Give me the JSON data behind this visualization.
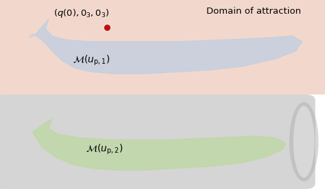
{
  "fig_width": 4.74,
  "fig_height": 2.76,
  "dpi": 100,
  "top_bg_color": "#f2d8cc",
  "bottom_bg_color": "#d5d5d5",
  "cylinder_light": "#e8e8e8",
  "cylinder_edge": "#b0b0b0",
  "blue_shape_fill": "#c5cfe0",
  "blue_shape_edge": "#5090b8",
  "green_shape_fill": "#c0d8a8",
  "green_shape_edge": "#5a9a40",
  "red_dot_color": "#bb1111",
  "label1": "$\\mathcal{M}(u_{\\mathrm{p},1})$",
  "label2": "$\\mathcal{M}(u_{\\mathrm{p},2})$",
  "annotation": "$(q(0), 0_3, 0_3)$",
  "domain_label": "Domain of attraction",
  "blue_pts_x": [
    1.1,
    1.3,
    1.5,
    1.4,
    1.6,
    2.0,
    2.8,
    4.0,
    5.5,
    7.0,
    8.2,
    9.0,
    9.3,
    9.1,
    8.5,
    7.5,
    6.5,
    5.5,
    4.5,
    3.5,
    2.8,
    2.3,
    1.9,
    1.6,
    1.4,
    1.2,
    1.0,
    0.9,
    1.1
  ],
  "blue_pts_y": [
    3.2,
    3.6,
    4.0,
    3.5,
    3.1,
    2.9,
    2.8,
    2.8,
    2.8,
    2.9,
    3.0,
    3.1,
    2.8,
    2.3,
    1.9,
    1.5,
    1.3,
    1.2,
    1.1,
    1.1,
    1.2,
    1.4,
    1.8,
    2.3,
    2.7,
    3.0,
    3.2,
    3.0,
    3.2
  ],
  "green_pts_x": [
    1.0,
    1.3,
    1.6,
    1.5,
    1.8,
    2.5,
    3.5,
    5.0,
    6.5,
    7.8,
    8.5,
    8.8,
    8.7,
    8.2,
    7.5,
    6.5,
    5.5,
    4.5,
    3.5,
    2.8,
    2.2,
    1.7,
    1.3,
    1.0
  ],
  "green_pts_y": [
    3.0,
    3.4,
    3.7,
    3.2,
    2.9,
    2.7,
    2.6,
    2.6,
    2.7,
    2.8,
    2.7,
    2.4,
    2.1,
    1.7,
    1.4,
    1.2,
    1.1,
    1.0,
    1.0,
    1.1,
    1.3,
    1.7,
    2.2,
    3.0
  ]
}
